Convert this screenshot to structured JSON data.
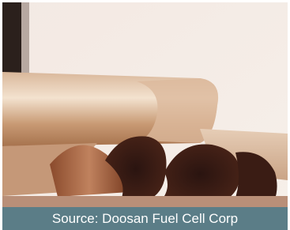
{
  "caption": "Source: Doosan Fuel Cell Corp"
}
